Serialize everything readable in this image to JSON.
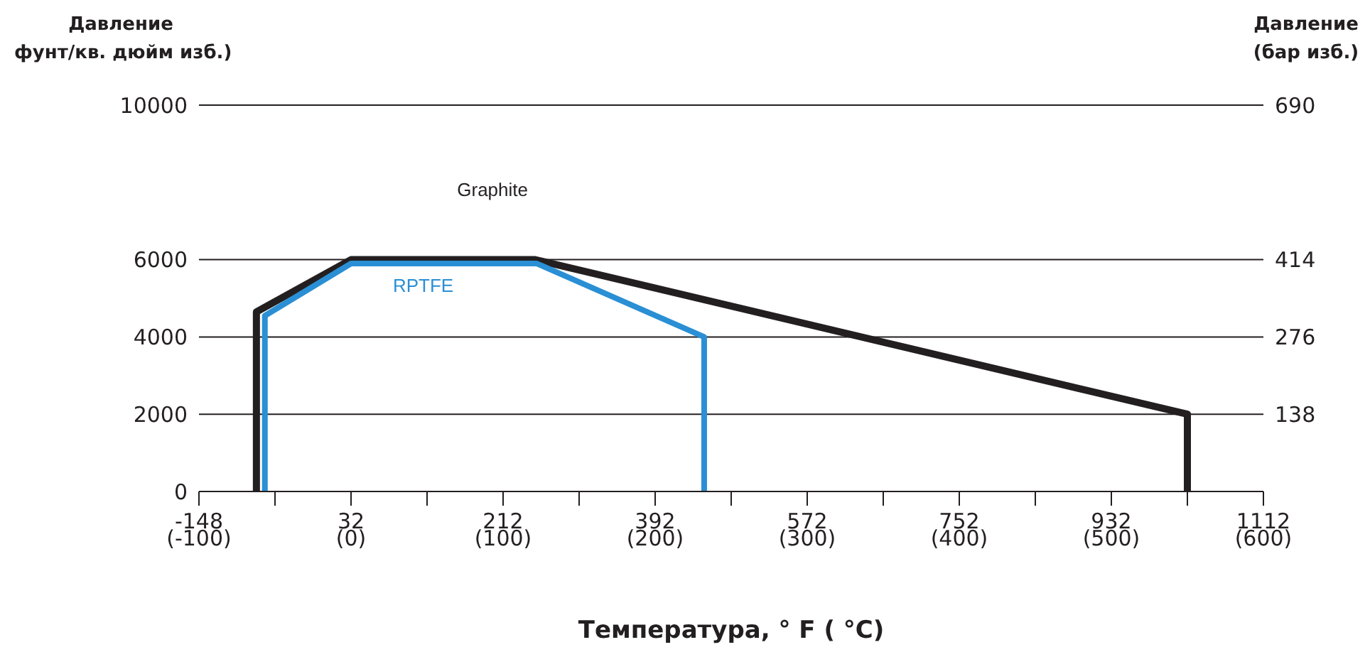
{
  "chart_data": {
    "type": "line",
    "xlabel": "Температура, ° F ( °C)",
    "ylabel": "Давление\nфунт/кв. дюйм изб.)",
    "y2label": "Давление\n(бар изб.)",
    "series": [
      {
        "name": "Graphite",
        "color": "#231f20",
        "x": [
          -80,
          -80,
          32,
          250,
          1022,
          1022
        ],
        "values": [
          0,
          4650,
          6000,
          6000,
          2000,
          0
        ]
      },
      {
        "name": "RPTFE",
        "color": "#2a8fd4",
        "x": [
          -70,
          -70,
          32,
          252,
          450,
          450
        ],
        "values": [
          0,
          4550,
          5900,
          5900,
          4000,
          0
        ]
      }
    ],
    "xlim": [
      -148,
      1112
    ],
    "xticks": [
      -148,
      {
        "value": -58,
        "label": null
      },
      32,
      {
        "value": 122,
        "label": null
      },
      212,
      {
        "value": 302,
        "label": null
      },
      392,
      {
        "value": 482,
        "label": null
      },
      572,
      {
        "value": 662,
        "label": null
      },
      752,
      {
        "value": 842,
        "label": null
      },
      932,
      {
        "value": 1022,
        "label": null
      },
      1112
    ],
    "x2lim": [
      -100,
      600
    ],
    "x2ticks": [
      {
        "value": -100,
        "label": "(-100)"
      },
      {
        "value": 0,
        "label": "(0)"
      },
      {
        "value": 100,
        "label": "(100)"
      },
      {
        "value": 200,
        "label": "(200)"
      },
      {
        "value": 300,
        "label": "(300)"
      },
      {
        "value": 400,
        "label": "(400)"
      },
      {
        "value": 500,
        "label": "(500)"
      },
      {
        "value": 600,
        "label": "(600)"
      }
    ],
    "ylim": [
      0,
      10000
    ],
    "yticks": [
      0,
      2000,
      4000,
      6000,
      10000
    ],
    "y2lim": [
      0,
      690
    ],
    "y2ticks": [
      138,
      276,
      414,
      690
    ],
    "grid": "y",
    "legend": false,
    "marker": "none",
    "line_style": "solid"
  }
}
